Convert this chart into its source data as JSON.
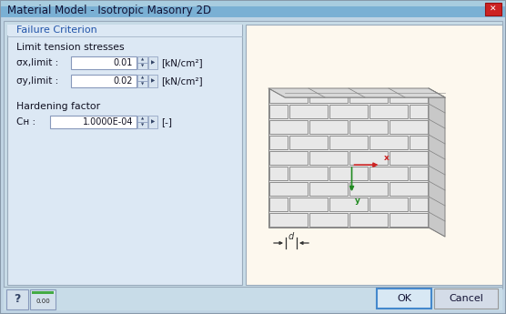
{
  "title": "Material Model - Isotropic Masonry 2D",
  "title_bar_bg": "#b8d4e8",
  "title_bar_gradient_top": "#c8dff0",
  "dialog_bg": "#c8dce8",
  "inner_bg": "#dce8f0",
  "failure_criterion_label": "Failure Criterion",
  "failure_box_bg": "#e8f0f8",
  "failure_box_border": "#8899bb",
  "limit_tension_label": "Limit tension stresses",
  "sigma_x_label": "σx,limit :",
  "sigma_x_value": "0.01",
  "sigma_x_unit": "[kN/cm²]",
  "sigma_y_label": "σy,limit :",
  "sigma_y_value": "0.02",
  "sigma_y_unit": "[kN/cm²]",
  "hardening_label": "Hardening factor",
  "ch_label": "Cʜ :",
  "ch_value": "1.0000E-04",
  "ch_unit": "[-]",
  "ok_label": "OK",
  "cancel_label": "Cancel",
  "brick_bg": "#fdf8ee",
  "brick_face_color": "#e8e8e8",
  "brick_side_color": "#d0d0d0",
  "brick_top_color": "#d8d8d8",
  "brick_border": "#888888",
  "x_arrow_color": "#cc2222",
  "y_arrow_color": "#228B22",
  "input_bg": "#ffffff",
  "input_border": "#8899bb",
  "spin_bg": "#d8e4f0",
  "close_btn_color": "#cc2222",
  "bottom_btn_bg": "#e0e8f0",
  "ok_btn_border": "#4488cc",
  "cancel_btn_border": "#999999"
}
